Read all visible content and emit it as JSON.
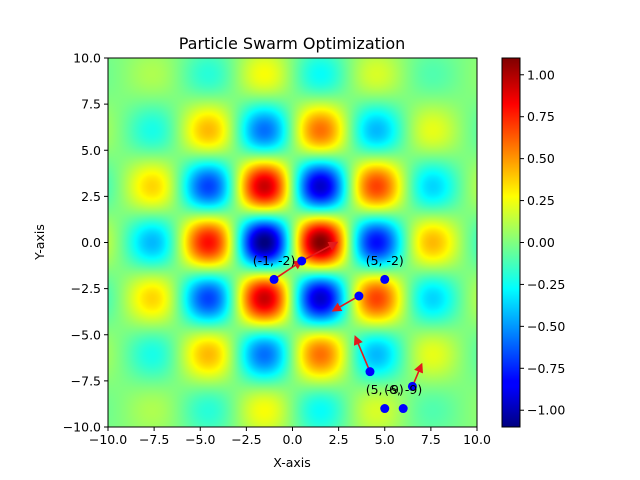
{
  "chart_data": {
    "type": "heatmap",
    "title": "Particle Swarm Optimization",
    "xlabel": "X-axis",
    "ylabel": "Y-axis",
    "xlim": [
      -10,
      10
    ],
    "ylim": [
      -10,
      10
    ],
    "x_ticks": [
      "−10.0",
      "−7.5",
      "−5.0",
      "−2.5",
      "0.0",
      "2.5",
      "5.0",
      "7.5",
      "10.0"
    ],
    "y_ticks": [
      "−10.0",
      "−7.5",
      "−5.0",
      "−2.5",
      "0.0",
      "2.5",
      "5.0",
      "7.5",
      "10.0"
    ],
    "colormap": "jet",
    "colorbar": {
      "range": [
        -1.1,
        1.1
      ],
      "ticks": [
        "−1.00",
        "−0.75",
        "−0.50",
        "−0.25",
        "0.00",
        "0.25",
        "0.50",
        "0.75",
        "1.00"
      ]
    },
    "particles": [
      {
        "x": -1.0,
        "y": -2.0,
        "vx": 1.5,
        "vy": 1.0
      },
      {
        "x": 0.5,
        "y": -1.0,
        "vx": 1.9,
        "vy": 1.0
      },
      {
        "x": 3.6,
        "y": -2.9,
        "vx": -1.4,
        "vy": -0.8
      },
      {
        "x": 5.0,
        "y": -2.0,
        "vx": 0.0,
        "vy": 0.0
      },
      {
        "x": 4.2,
        "y": -7.0,
        "vx": -0.8,
        "vy": 1.9
      },
      {
        "x": 6.5,
        "y": -7.8,
        "vx": 0.5,
        "vy": 1.2
      },
      {
        "x": 5.0,
        "y": -9.0,
        "vx": 0.0,
        "vy": 0.0
      },
      {
        "x": 6.0,
        "y": -9.0,
        "vx": 0.0,
        "vy": 0.0
      }
    ],
    "annotations": [
      {
        "text": "(-1, -2)",
        "x": -1.0,
        "y": -1.0
      },
      {
        "text": "(5, -2)",
        "x": 5.0,
        "y": -1.0
      },
      {
        "text": "(5, -9)",
        "x": 5.0,
        "y": -8.0
      },
      {
        "text": "(6, -9)",
        "x": 6.0,
        "y": -8.0
      }
    ],
    "colors": {
      "particle": "#0000ff",
      "velocity_arrow": "#e41a1c"
    }
  }
}
